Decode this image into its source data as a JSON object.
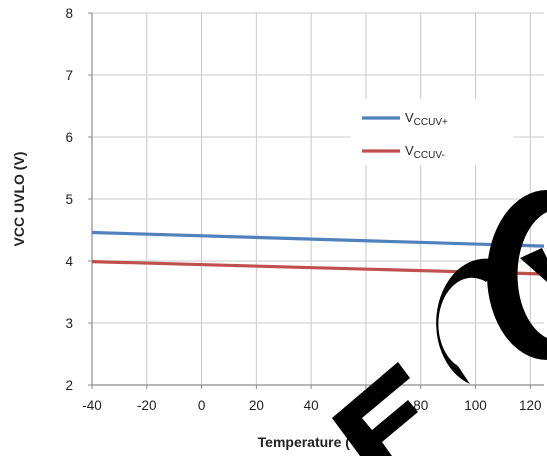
{
  "chart_data": {
    "type": "line",
    "title": "",
    "xlabel": "Temperature (°C)",
    "ylabel": "VCC UVLO (V)",
    "xlim": [
      -40,
      125
    ],
    "ylim": [
      2,
      8
    ],
    "xticks": [
      -40,
      -20,
      0,
      20,
      40,
      60,
      80,
      100,
      120
    ],
    "yticks": [
      2,
      3,
      4,
      5,
      6,
      7,
      8
    ],
    "grid": true,
    "legend_position": "upper-right",
    "series": [
      {
        "name": "V",
        "name_subscript": "CCUV+",
        "color": "#4f81bd",
        "x": [
          -40,
          125
        ],
        "y": [
          4.46,
          4.24
        ]
      },
      {
        "name": "V",
        "name_subscript": "CCUV-",
        "color": "#c0504d",
        "x": [
          -40,
          125
        ],
        "y": [
          3.99,
          3.79
        ]
      }
    ]
  },
  "watermark": {
    "text": "ECO",
    "color": "#000000"
  }
}
